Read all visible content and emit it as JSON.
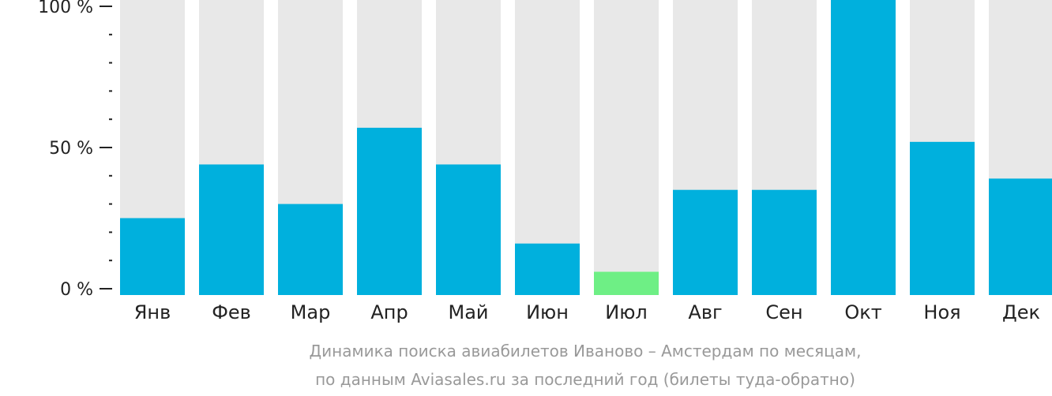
{
  "chart_data": {
    "type": "bar",
    "categories": [
      "Янв",
      "Фев",
      "Мар",
      "Апр",
      "Май",
      "Июн",
      "Июл",
      "Авг",
      "Сен",
      "Окт",
      "Ноя",
      "Дек"
    ],
    "values": [
      25,
      44,
      30,
      57,
      44,
      16,
      6,
      35,
      35,
      100,
      52,
      39
    ],
    "ylim": [
      0,
      100
    ],
    "yticks": [
      "0 %",
      "50 %",
      "100 %"
    ],
    "ytick_values": [
      0,
      50,
      100
    ],
    "caption": [
      "Динамика поиска авиабилетов Иваново – Амстердам по месяцам,",
      "по данным Aviasales.ru за последний год (билеты туда-обратно)"
    ],
    "colors": {
      "bar": "#00b0dd",
      "highlight": "#6eef85",
      "background_bar": "#e8e8e8",
      "axis": "#222222"
    },
    "highlight_index": 6
  }
}
